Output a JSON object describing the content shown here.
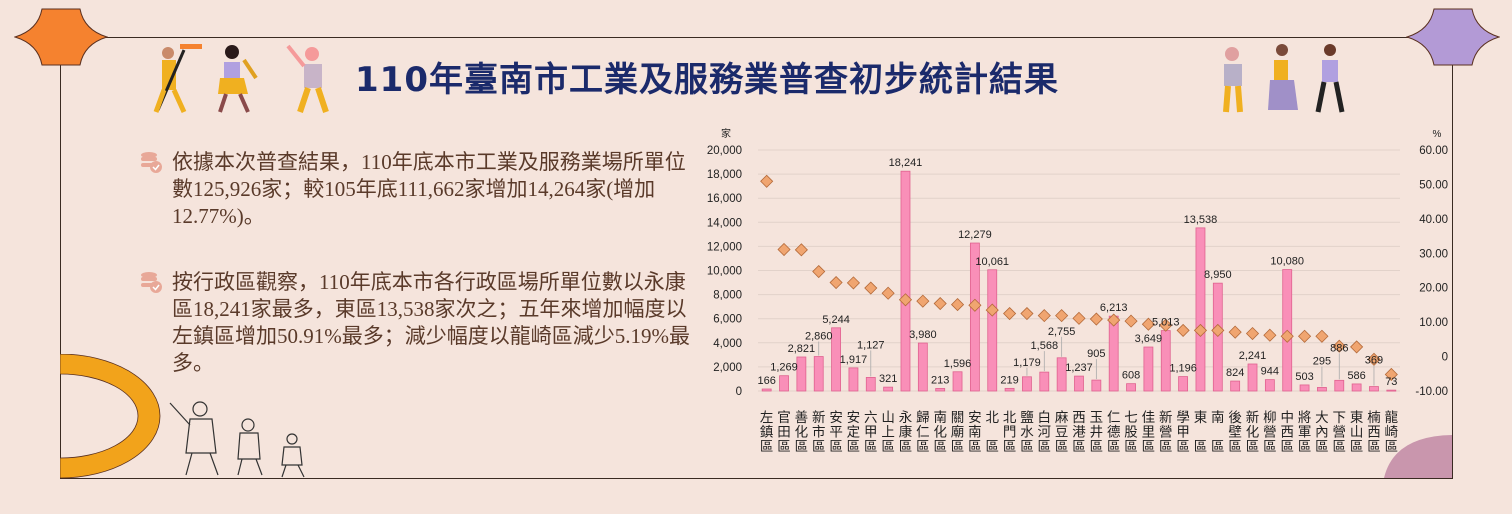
{
  "title": "110年臺南市工業及服務業普查初步統計結果",
  "paragraphs": [
    "依據本次普查結果，110年底本市工業及服務業場所單位數125,926家；較105年底111,662家增加14,264家(增加12.77%)。",
    "按行政區觀察，110年底本市各行政區場所單位數以永康區18,241家最多，東區13,538家次之；五年來增加幅度以左鎮區增加50.91%最多；減少幅度以龍崎區減少5.19%最多。"
  ],
  "colors": {
    "bar": "#f98fb8",
    "bar_border": "#e0628f",
    "diamond": "#f0a570",
    "diamond_border": "#b46a3a",
    "title": "#1b2a6b",
    "text": "#5a3a2a",
    "corner_left": "#f5822f",
    "corner_right": "#b39ad6",
    "bottom_left": "#f2a31b",
    "bottom_right": "#c996ad"
  },
  "chart_data": {
    "type": "bar+scatter",
    "y_left_label": "家",
    "y_right_label": "%",
    "ylim_left": [
      0,
      20000
    ],
    "ylim_right": [
      -10,
      60
    ],
    "y_left_ticks": [
      "20,000",
      "18,000",
      "16,000",
      "14,000",
      "12,000",
      "10,000",
      "8,000",
      "6,000",
      "4,000",
      "2,000",
      "0"
    ],
    "y_right_ticks": [
      "60.00",
      "50.00",
      "40.00",
      "30.00",
      "20.00",
      "10.00",
      "0",
      "-10.00"
    ],
    "grid": true,
    "categories": [
      "左鎮區",
      "官田區",
      "善化區",
      "新市區",
      "安平區",
      "安定區",
      "六甲區",
      "山上區",
      "永康區",
      "歸仁區",
      "南化區",
      "關廟區",
      "安南區",
      "北區",
      "北門區",
      "鹽水區",
      "白河區",
      "麻豆區",
      "西港區",
      "玉井區",
      "仁德區",
      "七股區",
      "佳里區",
      "新營區",
      "學甲區",
      "東區",
      "南區",
      "後壁區",
      "新化區",
      "柳營區",
      "中西區",
      "將軍區",
      "大內區",
      "下營區",
      "東山區",
      "楠西區",
      "龍崎區"
    ],
    "bar_values": [
      166,
      1269,
      2821,
      2860,
      5244,
      1917,
      1127,
      321,
      18241,
      3980,
      213,
      1596,
      12279,
      10061,
      219,
      1179,
      1568,
      2755,
      1237,
      905,
      6213,
      608,
      3649,
      5013,
      1196,
      13538,
      8950,
      824,
      2241,
      944,
      10080,
      503,
      295,
      886,
      586,
      369,
      73
    ],
    "bar_labels": [
      "166",
      "1,269",
      "2,821",
      "2,860",
      "5,244",
      "1,917",
      "1,127",
      "321",
      "18,241",
      "3,980",
      "213",
      "1,596",
      "12,279",
      "10,061",
      "219",
      "1,179",
      "1,568",
      "2,755",
      "1,237",
      "905",
      "6,213",
      "608",
      "3,649",
      "5,013",
      "1,196",
      "13,538",
      "8,950",
      "824",
      "2,241",
      "944",
      "10,080",
      "503",
      "295",
      "886",
      "586",
      "369",
      "73"
    ],
    "growth_pct": [
      50.91,
      31.1,
      31.0,
      24.7,
      21.5,
      21.4,
      19.9,
      18.4,
      16.5,
      16.1,
      15.4,
      15.1,
      14.9,
      13.5,
      12.5,
      12.5,
      11.9,
      11.9,
      11.1,
      10.9,
      10.6,
      10.3,
      9.4,
      9.1,
      7.6,
      7.6,
      7.6,
      7.1,
      6.7,
      6.2,
      5.9,
      5.9,
      5.9,
      3.0,
      2.8,
      -0.8,
      -5.19
    ]
  }
}
